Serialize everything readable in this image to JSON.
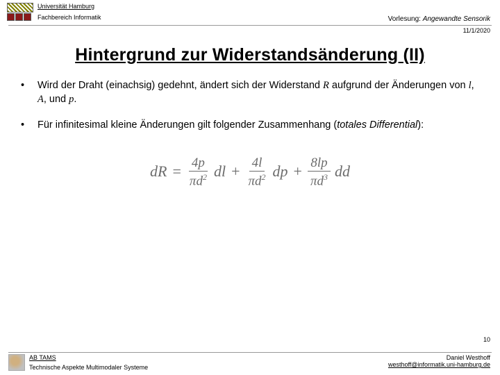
{
  "header": {
    "university": "Universität Hamburg",
    "department": "Fachbereich Informatik",
    "lecture_prefix": "Vorlesung: ",
    "lecture_title": "Angewandte Sensorik"
  },
  "date": "11/1/2020",
  "title": "Hintergrund zur Widerstandsänderung (II)",
  "bullets": [
    {
      "t1": "Wird der Draht (einachsig) gedehnt, ändert sich der Widerstand ",
      "v1": "R",
      "t2": " aufgrund der Änderungen von ",
      "v2": "l",
      "t3": ", ",
      "v3": "A",
      "t4": ", und ",
      "v4": "p",
      "t5": "."
    },
    {
      "t1": "Für infinitesimal kleine Änderungen gilt folgender Zusammenhang (",
      "em": "totales Differential",
      "t2": "):"
    }
  ],
  "equation": {
    "lhs": "dR",
    "eq": "=",
    "terms": [
      {
        "num": "4p",
        "den_pi": "π",
        "den_d": "d",
        "den_exp": "2",
        "diff": "dl"
      },
      {
        "num": "4l",
        "den_pi": "π",
        "den_d": "d",
        "den_exp": "2",
        "diff": "dp"
      },
      {
        "num": "8lp",
        "den_pi": "π",
        "den_d": "d",
        "den_exp": "3",
        "diff": "dd"
      }
    ],
    "plus": "+"
  },
  "page_number": "10",
  "footer": {
    "lab": "AB TAMS",
    "subtitle": "Technische Aspekte Multimodaler Systeme",
    "author": "Daniel Westhoff",
    "email": "westhoff@informatik.uni-hamburg.de"
  }
}
